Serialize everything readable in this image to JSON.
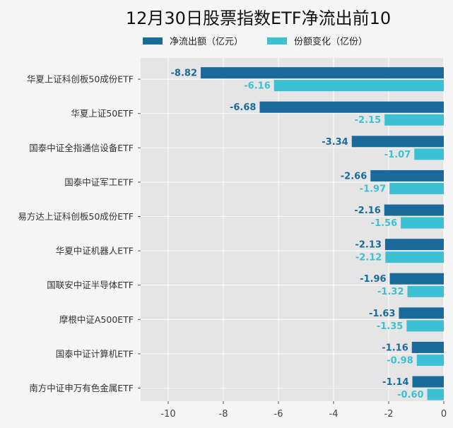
{
  "chart_data": {
    "type": "bar",
    "orientation": "horizontal",
    "title": "12月30日股票指数ETF净流出前10",
    "categories": [
      "华夏上证科创板50成份ETF",
      "华夏上证50ETF",
      "国泰中证全指通信设备ETF",
      "国泰中证军工ETF",
      "易方达上证科创板50成份ETF",
      "华夏中证机器人ETF",
      "国联安中证半导体ETF",
      "摩根中证A500ETF",
      "国泰中证计算机ETF",
      "南方中证申万有色金属ETF"
    ],
    "series": [
      {
        "name": "净流出额（亿元）",
        "color": "#1a6b9b",
        "values": [
          -8.82,
          -6.68,
          -3.34,
          -2.66,
          -2.16,
          -2.13,
          -1.96,
          -1.63,
          -1.16,
          -1.14
        ],
        "labels": [
          "-8.82",
          "-6.68",
          "-3.34",
          "-2.66",
          "-2.16",
          "-2.13",
          "-1.96",
          "-1.63",
          "-1.16",
          "-1.14"
        ]
      },
      {
        "name": "份额变化（亿份）",
        "color": "#3bc0d4",
        "values": [
          -6.16,
          -2.15,
          -1.07,
          -1.97,
          -1.56,
          -2.12,
          -1.32,
          -1.35,
          -0.98,
          -0.6
        ],
        "labels": [
          "-6.16",
          "-2.15",
          "-1.07",
          "-1.97",
          "-1.56",
          "-2.12",
          "-1.32",
          "-1.35",
          "-0.98",
          "-0.60"
        ]
      }
    ],
    "xlim": [
      -11,
      0
    ],
    "xticks": [
      -10,
      -8,
      -6,
      -4,
      -2,
      0
    ],
    "xtick_labels": [
      "-10",
      "-8",
      "-6",
      "-4",
      "-2",
      "0"
    ],
    "grid": true,
    "legend_position": "top"
  }
}
